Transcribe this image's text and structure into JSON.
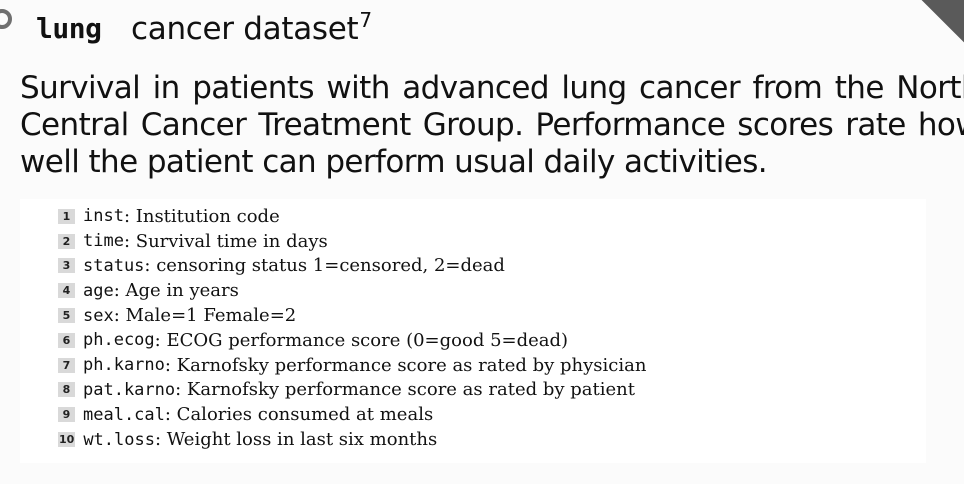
{
  "heading": {
    "code": "lung",
    "text": "cancer dataset",
    "footnote": "7"
  },
  "description": "Survival in patients with advanced lung cancer from the North Central Cancer Treatment Group. Performance scores rate how well the patient can perform usual daily activities.",
  "variables": [
    {
      "num": "1",
      "name": "inst",
      "desc": ": Institution code"
    },
    {
      "num": "2",
      "name": "time",
      "desc": ": Survival time in days"
    },
    {
      "num": "3",
      "name": "status",
      "desc": ": censoring status 1=censored, 2=dead"
    },
    {
      "num": "4",
      "name": "age",
      "desc": ": Age in years"
    },
    {
      "num": "5",
      "name": "sex",
      "desc": ": Male=1 Female=2"
    },
    {
      "num": "6",
      "name": "ph.ecog",
      "desc": ": ECOG performance score (0=good 5=dead)"
    },
    {
      "num": "7",
      "name": "ph.karno",
      "desc": ": Karnofsky performance score as rated by physician"
    },
    {
      "num": "8",
      "name": "pat.karno",
      "desc": ": Karnofsky performance score as rated by patient"
    },
    {
      "num": "9",
      "name": "meal.cal",
      "desc": ": Calories consumed at meals"
    },
    {
      "num": "10",
      "name": "wt.loss",
      "desc": ": Weight loss in last six months"
    }
  ]
}
